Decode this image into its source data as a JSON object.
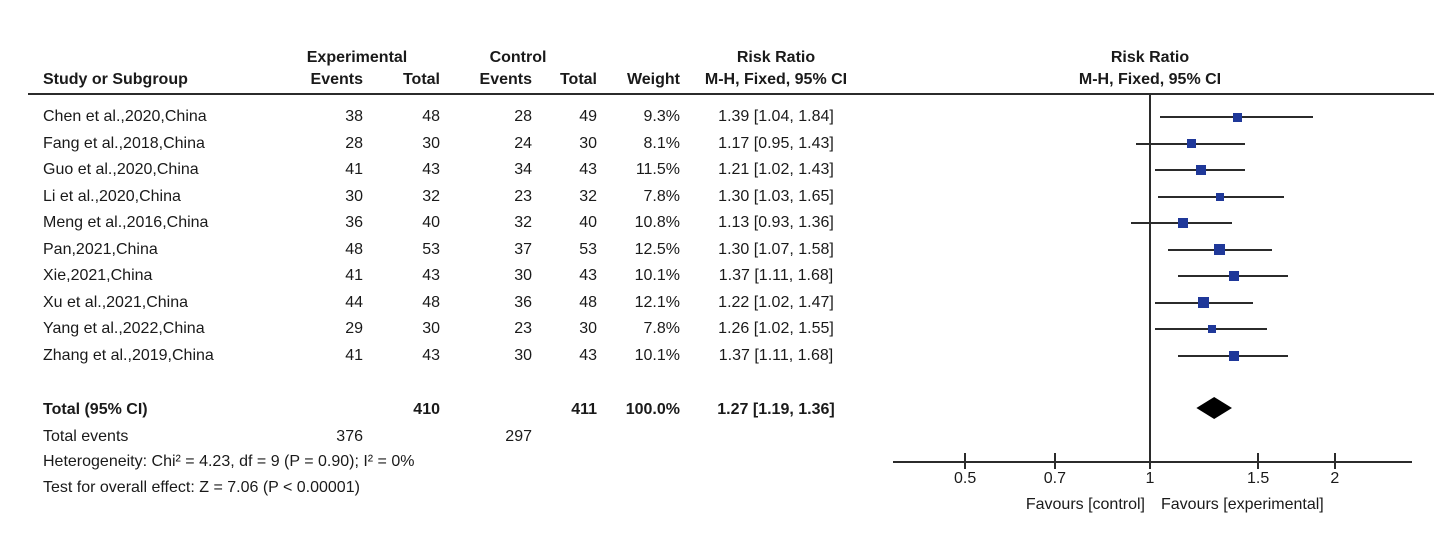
{
  "table": {
    "group_headers": {
      "experimental": "Experimental",
      "control": "Control",
      "risk_ratio_text": "Risk Ratio",
      "risk_ratio_plot": "Risk Ratio"
    },
    "column_headers": {
      "study": "Study or Subgroup",
      "exp_events": "Events",
      "exp_total": "Total",
      "ctrl_events": "Events",
      "ctrl_total": "Total",
      "weight": "Weight",
      "mh_fixed_text": "M-H, Fixed, 95% CI",
      "mh_fixed_plot": "M-H, Fixed, 95% CI"
    },
    "rows": [
      {
        "study": "Chen et al.,2020,China",
        "exp_events": "38",
        "exp_total": "48",
        "ctrl_events": "28",
        "ctrl_total": "49",
        "weight": "9.3%",
        "rr_text": "1.39 [1.04, 1.84]"
      },
      {
        "study": "Fang et al.,2018,China",
        "exp_events": "28",
        "exp_total": "30",
        "ctrl_events": "24",
        "ctrl_total": "30",
        "weight": "8.1%",
        "rr_text": "1.17 [0.95, 1.43]"
      },
      {
        "study": "Guo et al.,2020,China",
        "exp_events": "41",
        "exp_total": "43",
        "ctrl_events": "34",
        "ctrl_total": "43",
        "weight": "11.5%",
        "rr_text": "1.21 [1.02, 1.43]"
      },
      {
        "study": "Li et al.,2020,China",
        "exp_events": "30",
        "exp_total": "32",
        "ctrl_events": "23",
        "ctrl_total": "32",
        "weight": "7.8%",
        "rr_text": "1.30 [1.03, 1.65]"
      },
      {
        "study": "Meng et al.,2016,China",
        "exp_events": "36",
        "exp_total": "40",
        "ctrl_events": "32",
        "ctrl_total": "40",
        "weight": "10.8%",
        "rr_text": "1.13 [0.93, 1.36]"
      },
      {
        "study": "Pan,2021,China",
        "exp_events": "48",
        "exp_total": "53",
        "ctrl_events": "37",
        "ctrl_total": "53",
        "weight": "12.5%",
        "rr_text": "1.30 [1.07, 1.58]"
      },
      {
        "study": "Xie,2021,China",
        "exp_events": "41",
        "exp_total": "43",
        "ctrl_events": "30",
        "ctrl_total": "43",
        "weight": "10.1%",
        "rr_text": "1.37 [1.11, 1.68]"
      },
      {
        "study": "Xu et al.,2021,China",
        "exp_events": "44",
        "exp_total": "48",
        "ctrl_events": "36",
        "ctrl_total": "48",
        "weight": "12.1%",
        "rr_text": "1.22 [1.02, 1.47]"
      },
      {
        "study": "Yang et al.,2022,China",
        "exp_events": "29",
        "exp_total": "30",
        "ctrl_events": "23",
        "ctrl_total": "30",
        "weight": "7.8%",
        "rr_text": "1.26 [1.02, 1.55]"
      },
      {
        "study": "Zhang et al.,2019,China",
        "exp_events": "41",
        "exp_total": "43",
        "ctrl_events": "30",
        "ctrl_total": "43",
        "weight": "10.1%",
        "rr_text": "1.37 [1.11, 1.68]"
      }
    ],
    "total_row": {
      "label": "Total (95% CI)",
      "exp_total": "410",
      "ctrl_total": "411",
      "weight": "100.0%",
      "rr_text": "1.27 [1.19, 1.36]"
    },
    "total_events_row": {
      "label": "Total events",
      "experimental": "376",
      "control": "297"
    },
    "heterogeneity": "Heterogeneity: Chi² = 4.23, df = 9 (P = 0.90); I² = 0%",
    "overall_effect": "Test for overall effect: Z = 7.06 (P < 0.00001)"
  },
  "chart_data": {
    "type": "forest",
    "effect_measure": "Risk Ratio",
    "method": "M-H, Fixed, 95% CI",
    "scale": "log",
    "null_line": 1,
    "xlim": [
      0.38,
      2.65
    ],
    "axis_ticks": [
      0.5,
      0.7,
      1,
      1.5,
      2
    ],
    "axis_tick_labels": [
      "0.5",
      "0.7",
      "1",
      "1.5",
      "2"
    ],
    "favours_left": "Favours [control]",
    "favours_right": "Favours [experimental]",
    "studies": [
      {
        "name": "Chen et al.,2020,China",
        "rr": 1.39,
        "low": 1.04,
        "high": 1.84,
        "weight": 9.3
      },
      {
        "name": "Fang et al.,2018,China",
        "rr": 1.17,
        "low": 0.95,
        "high": 1.43,
        "weight": 8.1
      },
      {
        "name": "Guo et al.,2020,China",
        "rr": 1.21,
        "low": 1.02,
        "high": 1.43,
        "weight": 11.5
      },
      {
        "name": "Li et al.,2020,China",
        "rr": 1.3,
        "low": 1.03,
        "high": 1.65,
        "weight": 7.8
      },
      {
        "name": "Meng et al.,2016,China",
        "rr": 1.13,
        "low": 0.93,
        "high": 1.36,
        "weight": 10.8
      },
      {
        "name": "Pan,2021,China",
        "rr": 1.3,
        "low": 1.07,
        "high": 1.58,
        "weight": 12.5
      },
      {
        "name": "Xie,2021,China",
        "rr": 1.37,
        "low": 1.11,
        "high": 1.68,
        "weight": 10.1
      },
      {
        "name": "Xu et al.,2021,China",
        "rr": 1.22,
        "low": 1.02,
        "high": 1.47,
        "weight": 12.1
      },
      {
        "name": "Yang et al.,2022,China",
        "rr": 1.26,
        "low": 1.02,
        "high": 1.55,
        "weight": 7.8
      },
      {
        "name": "Zhang et al.,2019,China",
        "rr": 1.37,
        "low": 1.11,
        "high": 1.68,
        "weight": 10.1
      }
    ],
    "total": {
      "rr": 1.27,
      "low": 1.19,
      "high": 1.36
    },
    "colors": {
      "marker": "#1F3899",
      "ci_line": "#2b2b2b",
      "diamond": "#000000",
      "axis": "#2b2b2b",
      "text": "#1a1a1a"
    }
  }
}
